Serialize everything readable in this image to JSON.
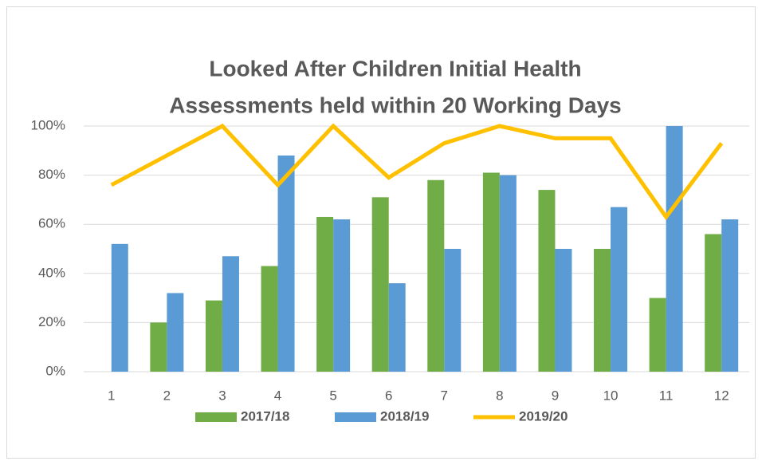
{
  "chart_data": {
    "type": "bar",
    "title": [
      "Looked After Children Initial Health",
      "Assessments held within 20 Working Days"
    ],
    "categories": [
      "1",
      "2",
      "3",
      "4",
      "5",
      "6",
      "7",
      "8",
      "9",
      "10",
      "11",
      "12"
    ],
    "series": [
      {
        "name": "2017/18",
        "color": "#70ad47",
        "type": "bar",
        "values": [
          null,
          20,
          29,
          43,
          63,
          71,
          78,
          81,
          74,
          50,
          30,
          56
        ]
      },
      {
        "name": "2018/19",
        "color": "#5b9bd5",
        "type": "bar",
        "values": [
          52,
          32,
          47,
          88,
          62,
          36,
          50,
          80,
          50,
          67,
          100,
          62
        ]
      },
      {
        "name": "2019/20",
        "color": "#ffc000",
        "type": "line",
        "values": [
          76,
          88,
          100,
          76,
          100,
          79,
          93,
          100,
          95,
          95,
          63,
          93
        ]
      }
    ],
    "ylim": [
      0,
      100
    ],
    "yticks": [
      {
        "value": 0,
        "label": "0%"
      },
      {
        "value": 20,
        "label": "20%"
      },
      {
        "value": 40,
        "label": "40%"
      },
      {
        "value": 60,
        "label": "60%"
      },
      {
        "value": 80,
        "label": "80%"
      },
      {
        "value": 100,
        "label": "100%"
      }
    ],
    "grid": true,
    "legend": "bottom"
  }
}
